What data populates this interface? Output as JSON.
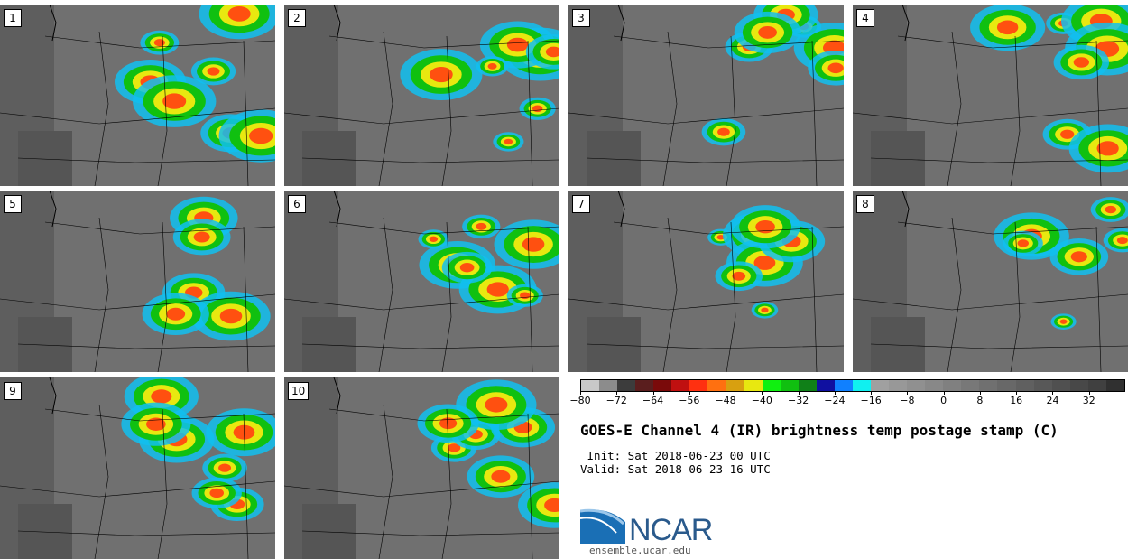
{
  "panels": [
    {
      "label": "1"
    },
    {
      "label": "2"
    },
    {
      "label": "3"
    },
    {
      "label": "4"
    },
    {
      "label": "5"
    },
    {
      "label": "6"
    },
    {
      "label": "7"
    },
    {
      "label": "8"
    },
    {
      "label": "9"
    },
    {
      "label": "10"
    }
  ],
  "colorbar": {
    "colors": [
      "#c8c8c8",
      "#8c8c8c",
      "#3c3c3c",
      "#5a1e1e",
      "#7a0a0a",
      "#c01010",
      "#ff3010",
      "#ff7010",
      "#d8a010",
      "#e8e810",
      "#10f010",
      "#10c010",
      "#108018",
      "#1010a0",
      "#1080ff",
      "#10f0f0",
      "#a0a0a0",
      "#989898",
      "#909090",
      "#888888",
      "#808080",
      "#787878",
      "#707070",
      "#686868",
      "#606060",
      "#585858",
      "#505050",
      "#484848",
      "#404040",
      "#303030"
    ],
    "ticks": [
      "−80",
      "−72",
      "−64",
      "−56",
      "−48",
      "−40",
      "−32",
      "−24",
      "−16",
      "−8",
      "0",
      "8",
      "16",
      "24",
      "32"
    ]
  },
  "title": "GOES-E Channel 4 (IR) brightness temp postage stamp (C)",
  "init_line": " Init: Sat 2018-06-23 00 UTC",
  "valid_line": "Valid: Sat 2018-06-23 16 UTC",
  "logo": {
    "text": "NCAR",
    "url": "ensemble.ucar.edu"
  }
}
